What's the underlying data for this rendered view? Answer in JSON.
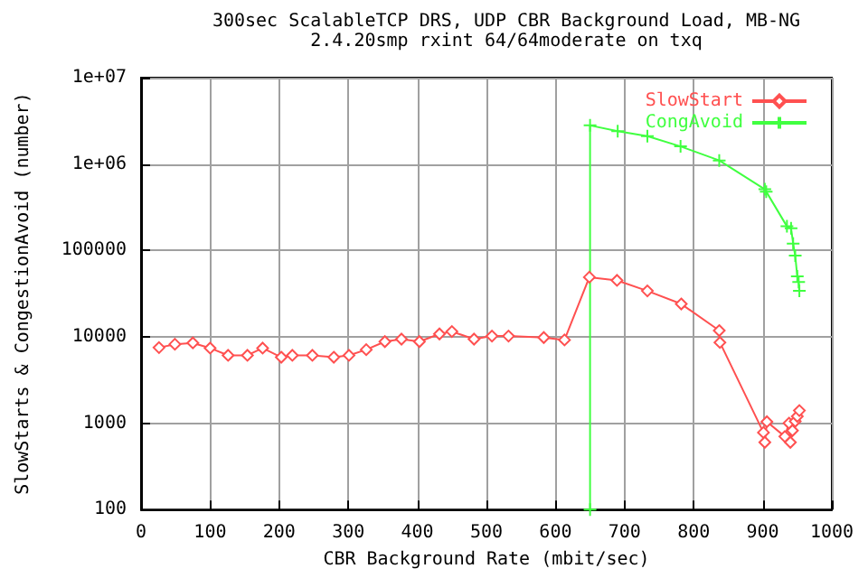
{
  "chart_data": {
    "type": "line",
    "title": "300sec ScalableTCP DRS, UDP CBR Background Load, MB-NG",
    "subtitle": "2.4.20smp rxint 64/64moderate on txq",
    "xlabel": "CBR Background Rate (mbit/sec)",
    "ylabel": "SlowStarts & CongestionAvoid (number)",
    "log": "y",
    "xlim": [
      0,
      1000
    ],
    "xticks": [
      0,
      100,
      200,
      300,
      400,
      500,
      600,
      700,
      800,
      900,
      1000
    ],
    "ylim": [
      100,
      10000000
    ],
    "yticks": [
      100,
      1000,
      10000,
      100000,
      {
        "value": 1000000,
        "label": "1e+06"
      },
      {
        "value": 10000000,
        "label": "1e+07"
      }
    ],
    "grid": true,
    "legend": "top right",
    "line_style": "solid",
    "series": [
      {
        "name": "SlowStart",
        "color": "#ff5050",
        "marker": "diamond",
        "x": [
          26,
          49,
          75,
          100,
          126,
          154,
          176,
          203,
          219,
          248,
          279,
          301,
          326,
          353,
          377,
          403,
          432,
          450,
          482,
          508,
          532,
          583,
          613,
          649,
          689,
          733,
          782,
          837,
          838,
          901,
          903,
          906,
          932,
          938,
          940,
          943,
          947,
          950,
          953
        ],
        "values": [
          7500,
          8200,
          8500,
          7400,
          6100,
          6100,
          7400,
          5800,
          6100,
          6100,
          5800,
          6100,
          7100,
          8800,
          9400,
          8800,
          10800,
          11500,
          9400,
          10200,
          10200,
          9800,
          9200,
          49000,
          45000,
          34000,
          24000,
          11800,
          8600,
          780,
          600,
          1040,
          700,
          1000,
          600,
          820,
          1050,
          1200,
          1400
        ]
      },
      {
        "name": "CongAvoid",
        "color": "#40ff40",
        "marker": "cross",
        "x": [
          650,
          650,
          690,
          733,
          781,
          837,
          903,
          905,
          935,
          941,
          944,
          947,
          950,
          952,
          953
        ],
        "values": [
          100,
          2800000,
          2400000,
          2100000,
          1600000,
          1100000,
          510000,
          480000,
          190000,
          180000,
          120000,
          87000,
          50000,
          43000,
          34000
        ]
      }
    ]
  }
}
